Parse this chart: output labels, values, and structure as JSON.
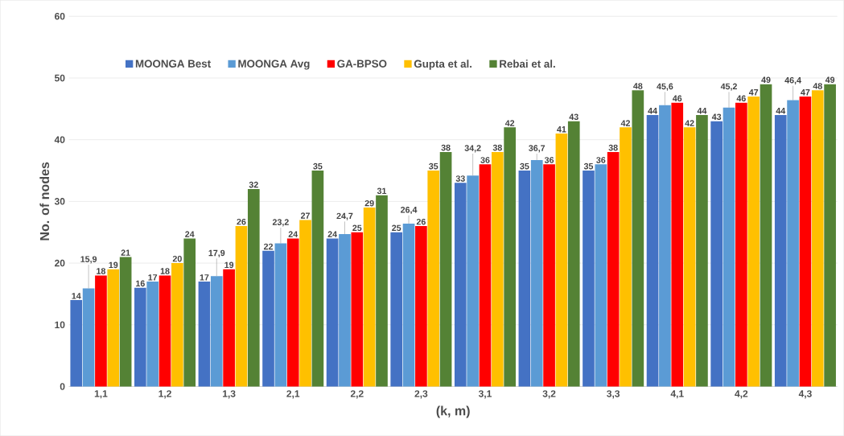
{
  "chart_data": {
    "type": "bar",
    "xlabel": "(k, m)",
    "ylabel": "No. of nodes",
    "categories": [
      "1,1",
      "1,2",
      "1,3",
      "2,1",
      "2,2",
      "2,3",
      "3,1",
      "3,2",
      "3,3",
      "4,1",
      "4,2",
      "4,3"
    ],
    "series": [
      {
        "name": "MOONGA Best",
        "color": "#4472c4",
        "values": [
          14,
          16,
          17,
          22,
          24,
          25,
          33,
          35,
          35,
          44,
          43,
          44
        ],
        "value_labels": [
          "14",
          "16",
          "17",
          "22",
          "24",
          "25",
          "33",
          "35",
          "35",
          "44",
          "43",
          "44"
        ]
      },
      {
        "name": "MOONGA Avg",
        "color": "#5b9bd5",
        "values": [
          15.9,
          17,
          17.9,
          23.2,
          24.7,
          26.4,
          34.2,
          36.7,
          36,
          45.6,
          45.2,
          46.4
        ],
        "value_labels": [
          "15,9",
          "17",
          "17,9",
          "23,2",
          "24,7",
          "26,4",
          "34,2",
          "36,7",
          "36",
          "45,6",
          "45,2",
          "46,4"
        ]
      },
      {
        "name": "GA-BPSO",
        "color": "#ff0000",
        "values": [
          18,
          18,
          19,
          24,
          25,
          26,
          36,
          36,
          38,
          46,
          46,
          47
        ],
        "value_labels": [
          "18",
          "18",
          "19",
          "24",
          "25",
          "26",
          "36",
          "36",
          "38",
          "46",
          "46",
          "47"
        ]
      },
      {
        "name": "Gupta et al.",
        "color": "#ffc000",
        "values": [
          19,
          20,
          26,
          27,
          29,
          35,
          38,
          41,
          42,
          42,
          47,
          48
        ],
        "value_labels": [
          "19",
          "20",
          "26",
          "27",
          "29",
          "35",
          "38",
          "41",
          "42",
          "42",
          "47",
          "48"
        ]
      },
      {
        "name": "Rebai et al.",
        "color": "#548235",
        "values": [
          21,
          24,
          32,
          35,
          31,
          38,
          42,
          43,
          48,
          44,
          49,
          49
        ],
        "value_labels": [
          "21",
          "24",
          "32",
          "35",
          "31",
          "38",
          "42",
          "43",
          "48",
          "44",
          "49",
          "49"
        ]
      }
    ],
    "ylim": [
      0,
      60
    ],
    "yticks": [
      0,
      10,
      20,
      30,
      40,
      50,
      60
    ],
    "grid": "y",
    "legend": "top"
  }
}
